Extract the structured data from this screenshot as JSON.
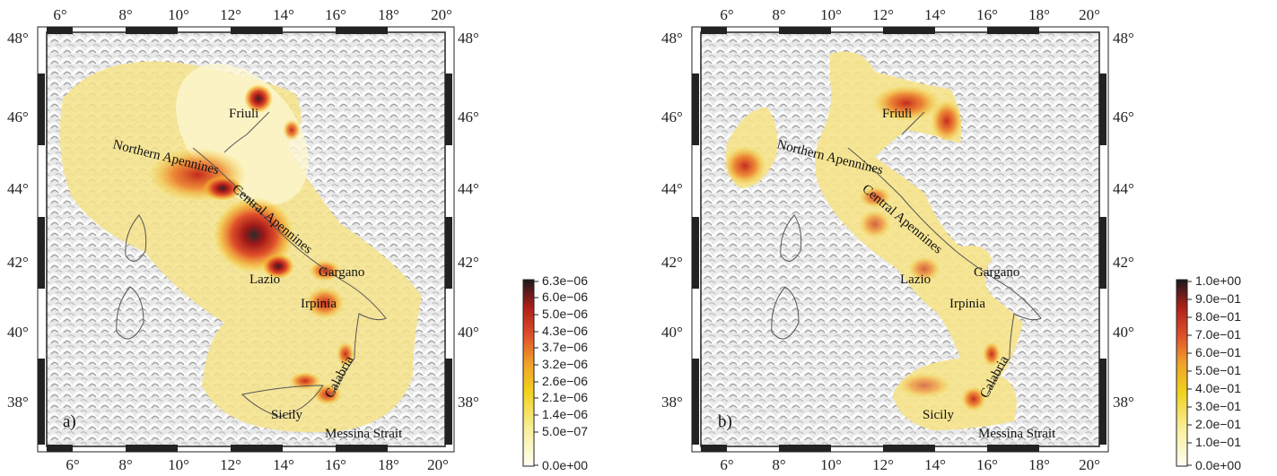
{
  "panels": [
    {
      "id": "a",
      "panel_label": "a)",
      "lon_ticks": [
        "6°",
        "8°",
        "10°",
        "12°",
        "14°",
        "16°",
        "18°",
        "20°"
      ],
      "lat_ticks": [
        "48°",
        "46°",
        "44°",
        "42°",
        "40°",
        "38°"
      ],
      "place_labels": [
        "Friuli",
        "Northern Apennines",
        "Central Apennines",
        "Gargano",
        "Lazio",
        "Irpinia",
        "Calabria",
        "Sicily",
        "Messina Strait"
      ],
      "colorbar_ticks": [
        "6.3e−06",
        "6.0e−06",
        "5.0e−06",
        "4.3e−06",
        "3.7e−06",
        "3.2e−06",
        "2.6e−06",
        "2.1e−06",
        "1.4e−06",
        "5.0e−07",
        "0.0e+00"
      ]
    },
    {
      "id": "b",
      "panel_label": "b)",
      "lon_ticks": [
        "6°",
        "8°",
        "10°",
        "12°",
        "14°",
        "16°",
        "18°",
        "20°"
      ],
      "lat_ticks": [
        "48°",
        "46°",
        "44°",
        "42°",
        "40°",
        "38°"
      ],
      "place_labels": [
        "Friuli",
        "Northern Apennines",
        "Central Apennines",
        "Gargano",
        "Lazio",
        "Irpinia",
        "Calabria",
        "Sicily",
        "Messina Strait"
      ],
      "colorbar_ticks": [
        "1.0e+00",
        "9.0e−01",
        "8.0e−01",
        "7.0e−01",
        "6.0e−01",
        "5.0e−01",
        "4.0e−01",
        "3.0e−01",
        "2.0e−01",
        "1.0e−01",
        "0.0e+00"
      ]
    }
  ],
  "colors": {
    "low": "#fdfbe0",
    "mid": "#f2d21b",
    "high": "#d83a1a",
    "max": "#1a1a1a"
  }
}
